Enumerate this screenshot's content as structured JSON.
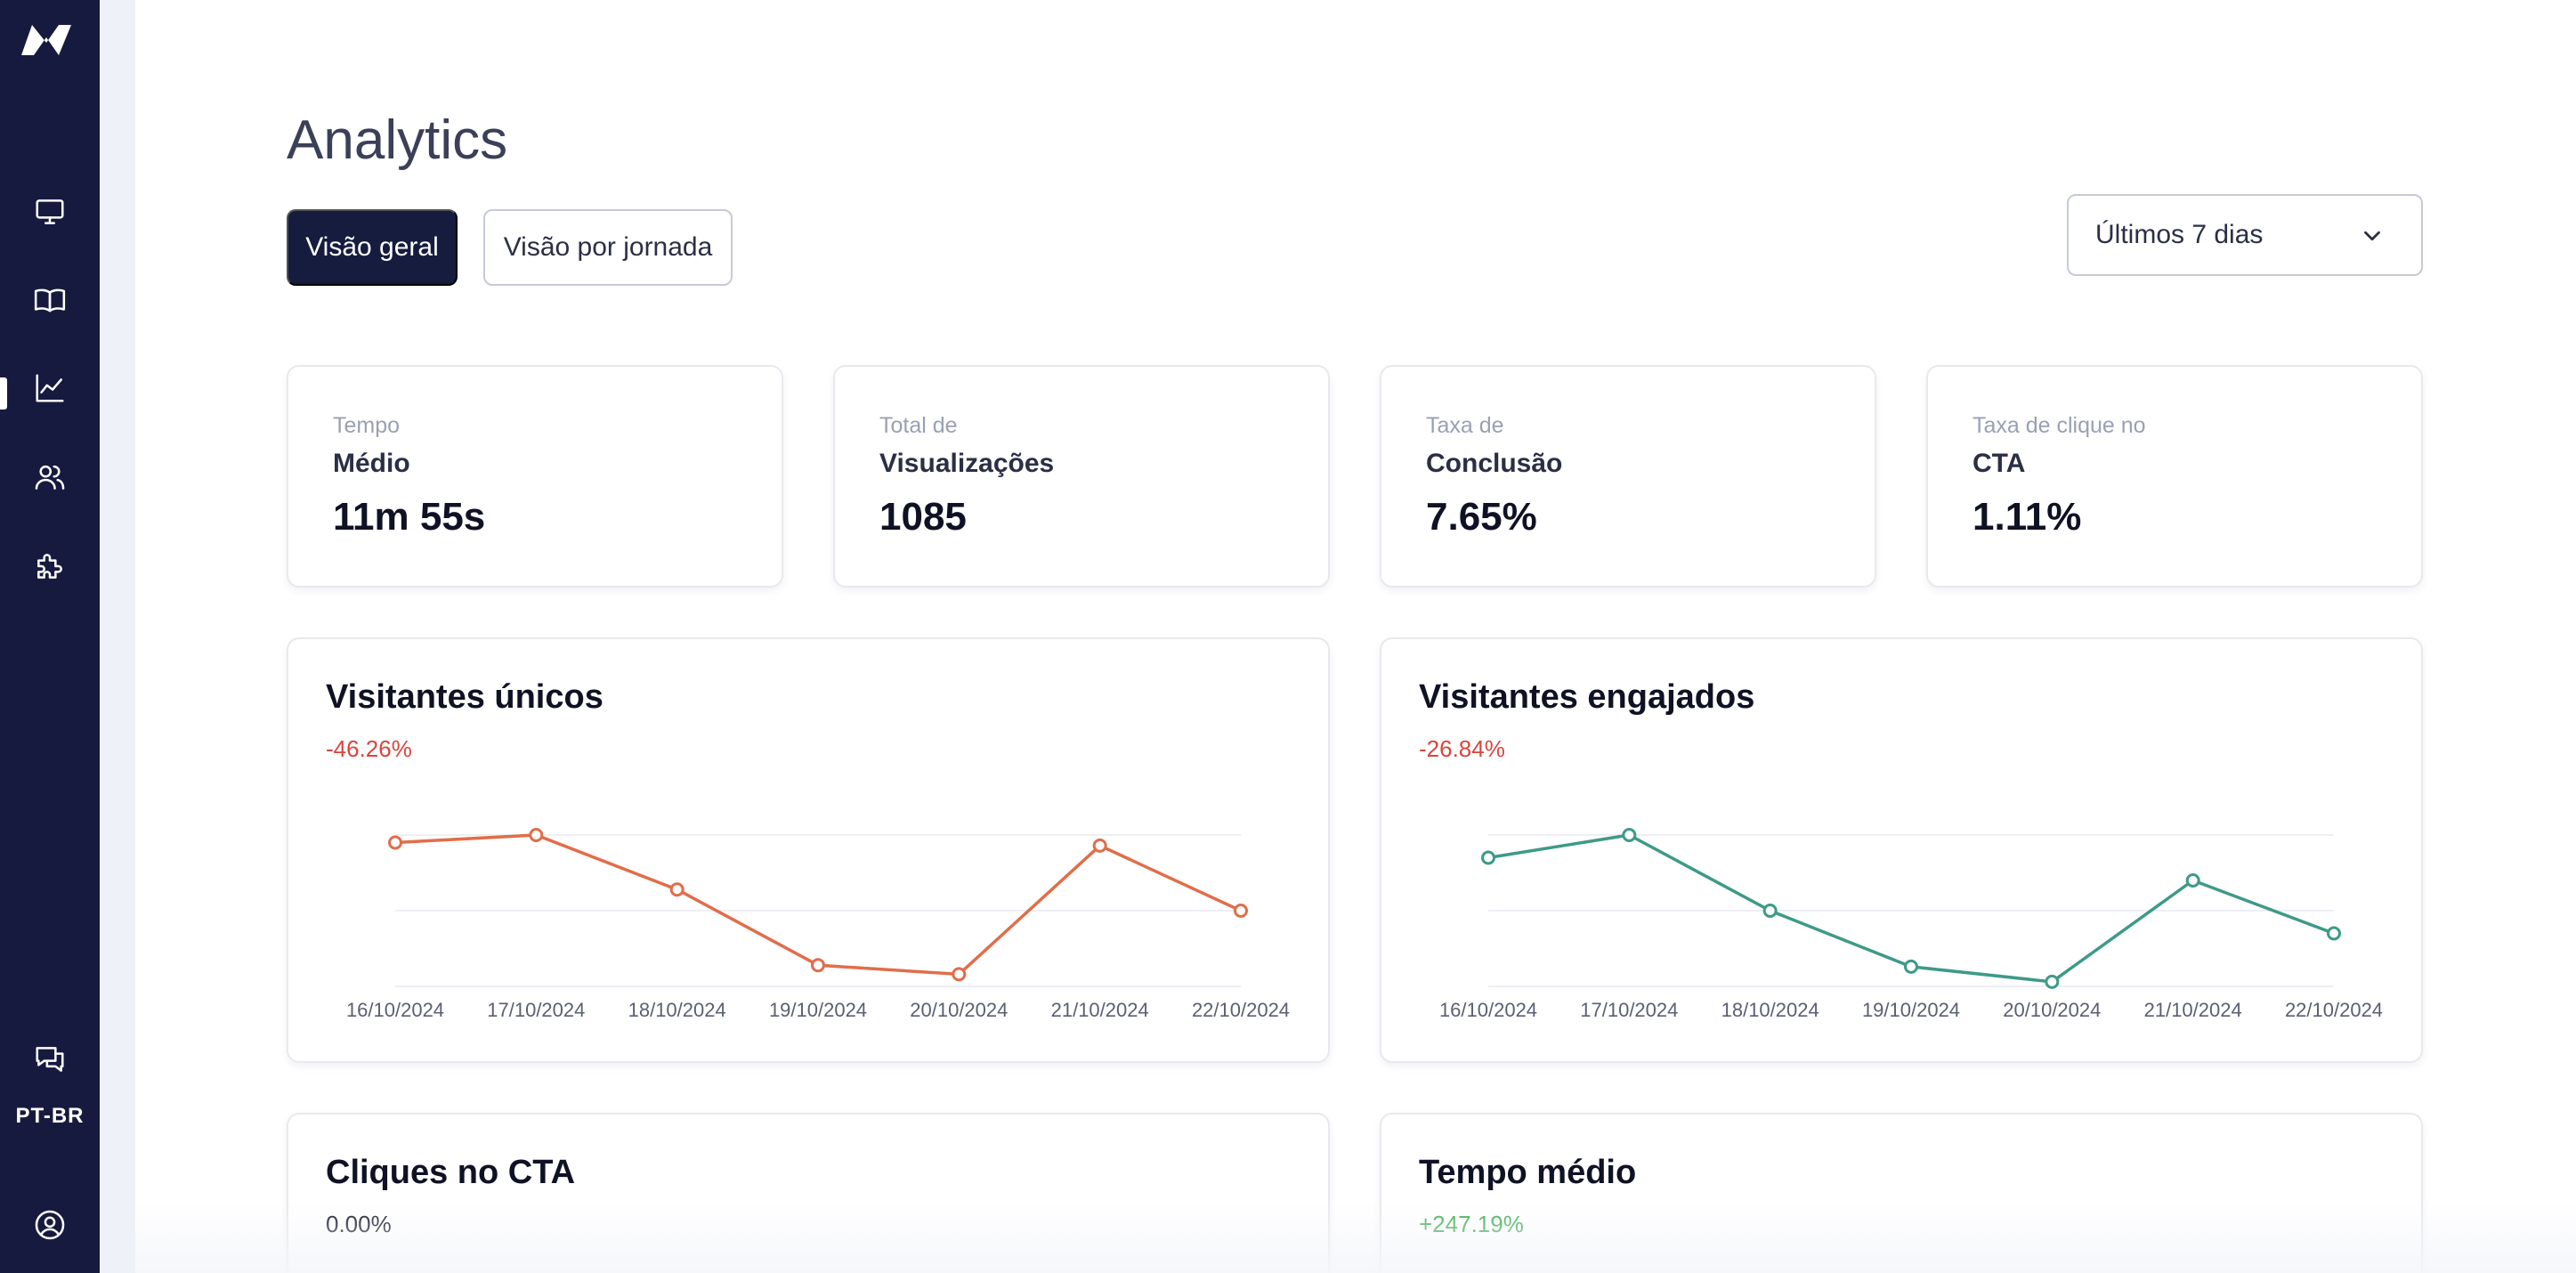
{
  "sidebar": {
    "logo": "logo-icon",
    "items": [
      {
        "name": "monitor-icon",
        "active": false
      },
      {
        "name": "book-icon",
        "active": false
      },
      {
        "name": "chart-line-icon",
        "active": true
      },
      {
        "name": "users-icon",
        "active": false
      },
      {
        "name": "puzzle-icon",
        "active": false
      }
    ],
    "chat_icon": "chat-icon",
    "language": "PT-BR",
    "account_icon": "user-circle-icon"
  },
  "header": {
    "title": "Analytics",
    "tabs": [
      {
        "label": "Visão geral",
        "active": true
      },
      {
        "label": "Visão por jornada",
        "active": false
      }
    ],
    "period_select": {
      "value": "Últimos 7 dias"
    }
  },
  "stats": [
    {
      "line1": "Tempo",
      "line2": "Médio",
      "value": "11m 55s"
    },
    {
      "line1": "Total de",
      "line2": "Visualizações",
      "value": "1085"
    },
    {
      "line1": "Taxa de",
      "line2": "Conclusão",
      "value": "7.65%"
    },
    {
      "line1": "Taxa de clique no",
      "line2": "CTA",
      "value": "1.11%"
    }
  ],
  "chart_data": [
    {
      "type": "line",
      "title": "Visitantes únicos",
      "delta": "-46.26%",
      "color": "#e06e4a",
      "x": [
        "16/10/2024",
        "17/10/2024",
        "18/10/2024",
        "19/10/2024",
        "20/10/2024",
        "21/10/2024",
        "22/10/2024"
      ],
      "values": [
        0.95,
        1.0,
        0.64,
        0.14,
        0.08,
        0.93,
        0.5
      ],
      "ylim": [
        0,
        1
      ],
      "grid": true
    },
    {
      "type": "line",
      "title": "Visitantes engajados",
      "delta": "-26.84%",
      "color": "#3e9a88",
      "x": [
        "16/10/2024",
        "17/10/2024",
        "18/10/2024",
        "19/10/2024",
        "20/10/2024",
        "21/10/2024",
        "22/10/2024"
      ],
      "values": [
        0.85,
        1.0,
        0.5,
        0.13,
        0.03,
        0.7,
        0.35
      ],
      "ylim": [
        0,
        1
      ],
      "grid": true
    }
  ],
  "bottom_cards": [
    {
      "title": "Cliques no CTA",
      "delta": "0.00%"
    },
    {
      "title": "Tempo médio",
      "delta": "+247.19%"
    }
  ]
}
